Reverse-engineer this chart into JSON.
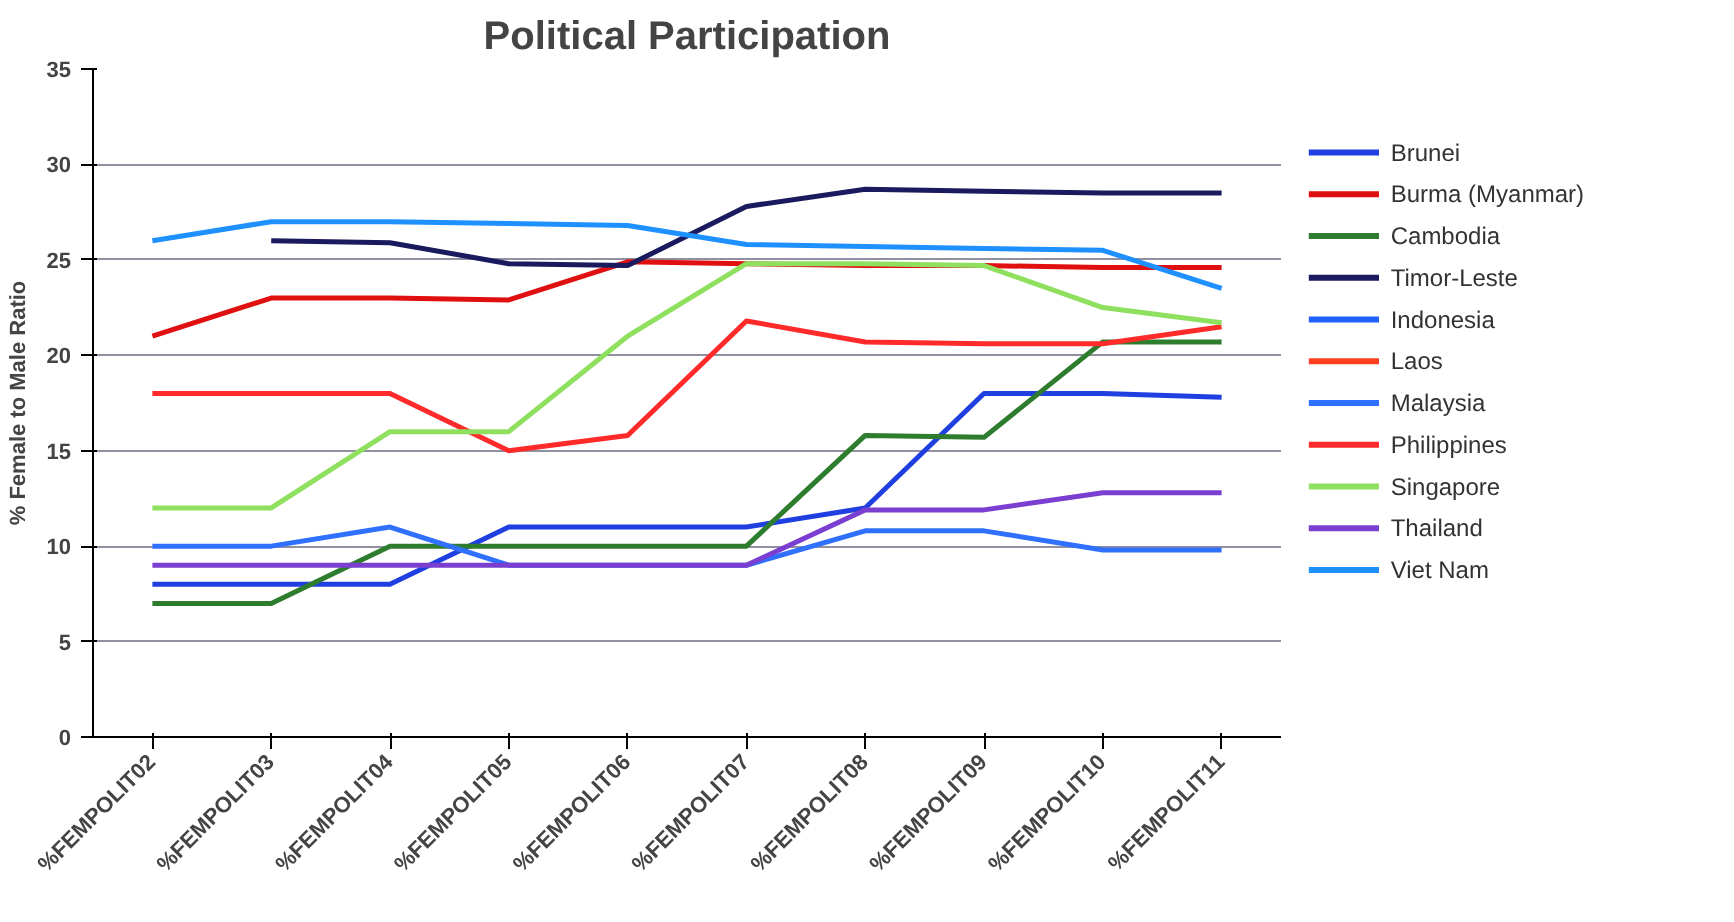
{
  "chart_data": {
    "type": "line",
    "title": "Political Participation",
    "ylabel": "% Female to Male Ratio",
    "categories": [
      "%FEMPOLIT02",
      "%FEMPOLIT03",
      "%FEMPOLIT04",
      "%FEMPOLIT05",
      "%FEMPOLIT06",
      "%FEMPOLIT07",
      "%FEMPOLIT08",
      "%FEMPOLIT09",
      "%FEMPOLIT10",
      "%FEMPOLIT11"
    ],
    "ylim": [
      0,
      35
    ],
    "yticks": [
      0,
      5,
      10,
      15,
      20,
      25,
      30,
      35
    ],
    "grid": "y",
    "legend": "right",
    "marker": "none",
    "line_style": "solid",
    "series": [
      {
        "name": "Brunei",
        "color": "#1f3fe0",
        "values": [
          8,
          8,
          8,
          11,
          11,
          11,
          12,
          18,
          18,
          17.8
        ]
      },
      {
        "name": "Burma (Myanmar)",
        "color": "#e01010",
        "values": [
          21,
          23,
          23,
          22.9,
          24.9,
          24.8,
          24.7,
          24.7,
          24.6,
          24.6
        ]
      },
      {
        "name": "Cambodia",
        "color": "#2e7d2e",
        "values": [
          7,
          7,
          10,
          10,
          10,
          10,
          15.8,
          15.7,
          20.7,
          20.7
        ]
      },
      {
        "name": "Timor-Leste",
        "color": "#1a1a5e",
        "values": [
          null,
          26,
          25.9,
          24.8,
          24.7,
          27.8,
          28.7,
          28.6,
          28.5,
          28.5
        ]
      },
      {
        "name": "Indonesia",
        "color": "#2060ff",
        "values": [
          null,
          null,
          null,
          null,
          null,
          null,
          null,
          null,
          null,
          null
        ]
      },
      {
        "name": "Laos",
        "color": "#ff4020",
        "values": [
          null,
          null,
          null,
          null,
          null,
          null,
          null,
          null,
          null,
          null
        ]
      },
      {
        "name": "Malaysia",
        "color": "#3070ff",
        "values": [
          10,
          10,
          11,
          9,
          9,
          9,
          10.8,
          10.8,
          9.8,
          9.8
        ]
      },
      {
        "name": "Philippines",
        "color": "#ff2a2a",
        "values": [
          18,
          18,
          18,
          15,
          15.8,
          21.8,
          20.7,
          20.6,
          20.6,
          21.5
        ]
      },
      {
        "name": "Singapore",
        "color": "#90e060",
        "values": [
          12,
          12,
          16,
          16,
          21,
          24.8,
          24.8,
          24.7,
          22.5,
          21.7
        ]
      },
      {
        "name": "Thailand",
        "color": "#7a3fd0",
        "values": [
          9,
          9,
          9,
          9,
          9,
          9,
          11.9,
          11.9,
          12.8,
          12.8
        ]
      },
      {
        "name": "Viet Nam",
        "color": "#1e90ff",
        "values": [
          26,
          27,
          27,
          26.9,
          26.8,
          25.8,
          25.7,
          25.6,
          25.5,
          23.5
        ]
      }
    ]
  }
}
